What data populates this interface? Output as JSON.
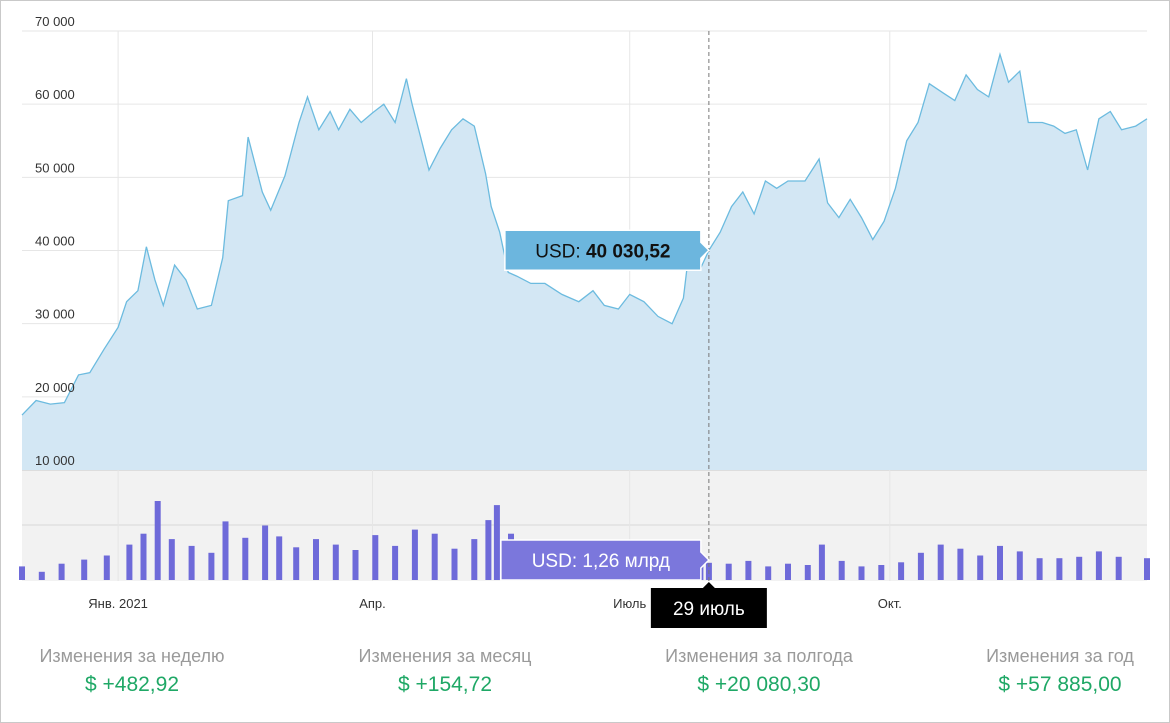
{
  "chart_data": {
    "type": "area",
    "currency": "USD",
    "y_ticks": [
      "70 000",
      "60 000",
      "50 000",
      "40 000",
      "30 000",
      "20 000",
      "10 000"
    ],
    "y_tick_values": [
      70000,
      60000,
      50000,
      40000,
      30000,
      20000,
      10000
    ],
    "ylim": [
      10000,
      70000
    ],
    "x_ticks": [
      "Янв. 2021",
      "Апр.",
      "Июль",
      "Окт."
    ],
    "x_tick_dates": [
      "2021-01-01",
      "2021-04-01",
      "2021-07-01",
      "2021-10-01"
    ],
    "xlim": [
      "2020-11-28",
      "2021-12-31"
    ],
    "grid": true,
    "price_series": {
      "name": "USD",
      "x": [
        "2020-11-28",
        "2020-12-03",
        "2020-12-08",
        "2020-12-13",
        "2020-12-18",
        "2020-12-22",
        "2020-12-27",
        "2021-01-01",
        "2021-01-04",
        "2021-01-08",
        "2021-01-11",
        "2021-01-14",
        "2021-01-17",
        "2021-01-21",
        "2021-01-25",
        "2021-01-29",
        "2021-02-03",
        "2021-02-07",
        "2021-02-09",
        "2021-02-14",
        "2021-02-16",
        "2021-02-21",
        "2021-02-24",
        "2021-03-01",
        "2021-03-06",
        "2021-03-09",
        "2021-03-13",
        "2021-03-17",
        "2021-03-20",
        "2021-03-24",
        "2021-03-28",
        "2021-04-01",
        "2021-04-05",
        "2021-04-09",
        "2021-04-13",
        "2021-04-15",
        "2021-04-18",
        "2021-04-21",
        "2021-04-25",
        "2021-04-29",
        "2021-05-03",
        "2021-05-07",
        "2021-05-11",
        "2021-05-13",
        "2021-05-16",
        "2021-05-19",
        "2021-05-22",
        "2021-05-27",
        "2021-06-01",
        "2021-06-07",
        "2021-06-13",
        "2021-06-18",
        "2021-06-22",
        "2021-06-27",
        "2021-07-01",
        "2021-07-06",
        "2021-07-11",
        "2021-07-16",
        "2021-07-20",
        "2021-07-22",
        "2021-07-26",
        "2021-07-29",
        "2021-08-02",
        "2021-08-06",
        "2021-08-10",
        "2021-08-14",
        "2021-08-18",
        "2021-08-22",
        "2021-08-26",
        "2021-09-01",
        "2021-09-06",
        "2021-09-09",
        "2021-09-13",
        "2021-09-17",
        "2021-09-21",
        "2021-09-25",
        "2021-09-29",
        "2021-10-03",
        "2021-10-07",
        "2021-10-11",
        "2021-10-15",
        "2021-10-20",
        "2021-10-24",
        "2021-10-28",
        "2021-11-01",
        "2021-11-05",
        "2021-11-09",
        "2021-11-12",
        "2021-11-16",
        "2021-11-19",
        "2021-11-24",
        "2021-11-28",
        "2021-12-02",
        "2021-12-06",
        "2021-12-10",
        "2021-12-14",
        "2021-12-18",
        "2021-12-22",
        "2021-12-27",
        "2021-12-31"
      ],
      "values": [
        17500,
        19500,
        19000,
        19200,
        23000,
        23300,
        26500,
        29500,
        33000,
        34500,
        40500,
        36000,
        32500,
        38000,
        36000,
        32000,
        32500,
        39000,
        46800,
        47500,
        55500,
        48000,
        45500,
        50200,
        57500,
        61000,
        56500,
        59000,
        56500,
        59300,
        57500,
        58800,
        60000,
        57500,
        63500,
        60000,
        55500,
        51000,
        54000,
        56500,
        58000,
        57000,
        50500,
        46000,
        42500,
        37000,
        36500,
        35500,
        35500,
        34000,
        33000,
        34500,
        32500,
        32000,
        34000,
        33000,
        31000,
        30000,
        33500,
        40000,
        37500,
        40030,
        42500,
        46000,
        48000,
        45000,
        49500,
        48500,
        49500,
        49500,
        52500,
        46500,
        44500,
        47000,
        44500,
        41500,
        44000,
        48500,
        55000,
        57500,
        62800,
        61500,
        60500,
        64000,
        62000,
        61000,
        66800,
        63000,
        64500,
        57500,
        57500,
        57000,
        56000,
        56500,
        51000,
        58000,
        59000,
        56500,
        57000,
        58000
      ]
    },
    "volume_series": {
      "name": "USD",
      "unit": "млрд",
      "x": [
        "2020-11-28",
        "2020-12-05",
        "2020-12-12",
        "2020-12-20",
        "2020-12-28",
        "2021-01-05",
        "2021-01-10",
        "2021-01-15",
        "2021-01-20",
        "2021-01-27",
        "2021-02-03",
        "2021-02-08",
        "2021-02-15",
        "2021-02-22",
        "2021-02-27",
        "2021-03-05",
        "2021-03-12",
        "2021-03-19",
        "2021-03-26",
        "2021-04-02",
        "2021-04-09",
        "2021-04-16",
        "2021-04-23",
        "2021-04-30",
        "2021-05-07",
        "2021-05-12",
        "2021-05-15",
        "2021-05-20",
        "2021-05-24",
        "2021-05-30",
        "2021-06-07",
        "2021-06-14",
        "2021-06-21",
        "2021-06-28",
        "2021-07-05",
        "2021-07-12",
        "2021-07-19",
        "2021-07-26",
        "2021-07-29",
        "2021-08-05",
        "2021-08-12",
        "2021-08-19",
        "2021-08-26",
        "2021-09-02",
        "2021-09-07",
        "2021-09-14",
        "2021-09-21",
        "2021-09-28",
        "2021-10-05",
        "2021-10-12",
        "2021-10-19",
        "2021-10-26",
        "2021-11-02",
        "2021-11-09",
        "2021-11-16",
        "2021-11-23",
        "2021-11-30",
        "2021-12-07",
        "2021-12-14",
        "2021-12-21",
        "2021-12-31"
      ],
      "values": [
        1.0,
        0.6,
        1.2,
        1.5,
        1.8,
        2.6,
        3.4,
        5.8,
        3.0,
        2.5,
        2.0,
        4.3,
        3.1,
        4.0,
        3.2,
        2.4,
        3.0,
        2.6,
        2.2,
        3.3,
        2.5,
        3.7,
        3.4,
        2.3,
        3.0,
        4.4,
        5.5,
        3.4,
        2.5,
        2.2,
        1.6,
        2.5,
        1.8,
        1.5,
        1.4,
        1.3,
        1.0,
        1.1,
        1.26,
        1.2,
        1.4,
        1.0,
        1.2,
        1.1,
        2.6,
        1.4,
        1.0,
        1.1,
        1.3,
        2.0,
        2.6,
        2.3,
        1.8,
        2.5,
        2.1,
        1.6,
        1.6,
        1.7,
        2.1,
        1.7,
        1.6
      ]
    },
    "cursor": {
      "date_label": "29 июль",
      "price_label": "USD:",
      "price_value": "40 030,52",
      "volume_label": "USD: 1,26 млрд"
    },
    "colors": {
      "area_fill": "#d3e7f4",
      "line": "#6cbbdf",
      "volume": "#6e6ad9",
      "volume_panel": "#f2f2f2",
      "price_tooltip": "#6cb6de",
      "volume_tooltip": "#7b77dc",
      "date_tooltip": "#000000",
      "positive": "#1fa866"
    }
  },
  "stats": [
    {
      "label": "Изменения за неделю",
      "value": "$ +482,92"
    },
    {
      "label": "Изменения за месяц",
      "value": "$ +154,72"
    },
    {
      "label": "Изменения за полгода",
      "value": "$ +20 080,30"
    },
    {
      "label": "Изменения за год",
      "value": "$ +57 885,00"
    }
  ]
}
